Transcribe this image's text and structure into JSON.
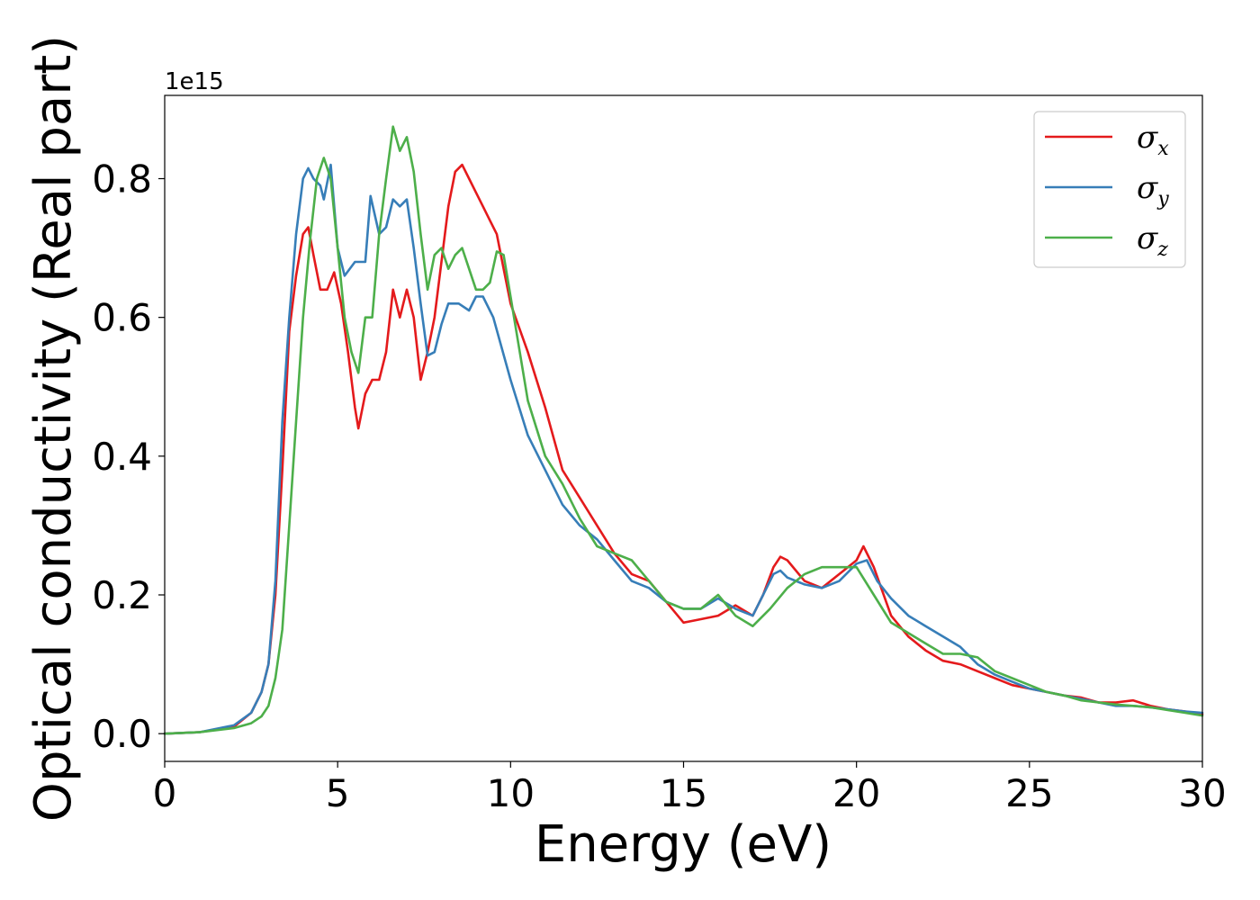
{
  "chart_data": {
    "type": "line",
    "title": "",
    "xlabel": "Energy (eV)",
    "ylabel": "Optical conductivity (Real part)",
    "y_offset_label": "1e15",
    "xlim": [
      0,
      30
    ],
    "ylim": [
      -0.04,
      0.92
    ],
    "xticks": [
      0,
      5,
      10,
      15,
      20,
      25,
      30
    ],
    "xtick_labels": [
      "0",
      "5",
      "10",
      "15",
      "20",
      "25",
      "30"
    ],
    "yticks": [
      0.0,
      0.2,
      0.4,
      0.6,
      0.8
    ],
    "ytick_labels": [
      "0.0",
      "0.2",
      "0.4",
      "0.6",
      "0.8"
    ],
    "grid": false,
    "legend_position": "top-right",
    "series": [
      {
        "name": "σx",
        "symbol": "σ",
        "subscript": "x",
        "color": "#e41a1c",
        "x": [
          0,
          1,
          2,
          2.5,
          2.8,
          3.0,
          3.2,
          3.4,
          3.6,
          3.8,
          4.0,
          4.15,
          4.3,
          4.5,
          4.7,
          4.9,
          5.1,
          5.3,
          5.5,
          5.6,
          5.8,
          6.0,
          6.2,
          6.4,
          6.6,
          6.8,
          7.0,
          7.2,
          7.4,
          7.6,
          7.8,
          8.0,
          8.2,
          8.4,
          8.6,
          8.8,
          9.0,
          9.2,
          9.4,
          9.6,
          9.8,
          10.0,
          10.5,
          11.0,
          11.5,
          12.0,
          12.5,
          13.0,
          13.5,
          14.0,
          14.5,
          15.0,
          15.5,
          16.0,
          16.5,
          17.0,
          17.3,
          17.6,
          17.8,
          18.0,
          18.5,
          19.0,
          19.5,
          20.0,
          20.2,
          20.5,
          21.0,
          21.5,
          22.0,
          22.5,
          23.0,
          23.5,
          24.0,
          24.5,
          25.0,
          25.5,
          26.0,
          26.5,
          27.0,
          27.5,
          28.0,
          28.5,
          29.0,
          29.5,
          30.0
        ],
        "y": [
          0.0,
          0.002,
          0.01,
          0.03,
          0.06,
          0.1,
          0.2,
          0.38,
          0.58,
          0.66,
          0.72,
          0.73,
          0.69,
          0.64,
          0.64,
          0.665,
          0.62,
          0.55,
          0.47,
          0.44,
          0.49,
          0.51,
          0.51,
          0.55,
          0.64,
          0.6,
          0.64,
          0.6,
          0.51,
          0.55,
          0.6,
          0.68,
          0.76,
          0.81,
          0.82,
          0.8,
          0.78,
          0.76,
          0.74,
          0.72,
          0.67,
          0.62,
          0.55,
          0.47,
          0.38,
          0.34,
          0.3,
          0.26,
          0.23,
          0.22,
          0.19,
          0.16,
          0.165,
          0.17,
          0.185,
          0.17,
          0.2,
          0.24,
          0.255,
          0.25,
          0.22,
          0.21,
          0.23,
          0.25,
          0.27,
          0.24,
          0.17,
          0.14,
          0.12,
          0.105,
          0.1,
          0.09,
          0.08,
          0.07,
          0.065,
          0.06,
          0.055,
          0.052,
          0.045,
          0.045,
          0.048,
          0.04,
          0.035,
          0.032,
          0.028
        ]
      },
      {
        "name": "σy",
        "symbol": "σ",
        "subscript": "y",
        "color": "#377eb8",
        "x": [
          0,
          1,
          2,
          2.5,
          2.8,
          3.0,
          3.2,
          3.4,
          3.6,
          3.8,
          4.0,
          4.15,
          4.3,
          4.5,
          4.6,
          4.8,
          5.0,
          5.2,
          5.5,
          5.8,
          5.95,
          6.2,
          6.4,
          6.6,
          6.8,
          7.0,
          7.2,
          7.4,
          7.6,
          7.8,
          8.0,
          8.2,
          8.5,
          8.8,
          9.0,
          9.2,
          9.5,
          10.0,
          10.5,
          11.0,
          11.5,
          12.0,
          12.5,
          13.0,
          13.5,
          14.0,
          14.5,
          15.0,
          15.5,
          16.0,
          16.5,
          17.0,
          17.3,
          17.6,
          17.8,
          18.0,
          18.5,
          19.0,
          19.5,
          20.0,
          20.3,
          20.6,
          21.0,
          21.5,
          22.0,
          22.5,
          23.0,
          23.5,
          24.0,
          24.5,
          25.0,
          25.5,
          26.0,
          26.5,
          27.0,
          27.5,
          28.0,
          28.5,
          29.0,
          29.5,
          30.0
        ],
        "y": [
          0.0,
          0.002,
          0.012,
          0.03,
          0.06,
          0.1,
          0.22,
          0.45,
          0.6,
          0.72,
          0.8,
          0.815,
          0.8,
          0.79,
          0.77,
          0.82,
          0.7,
          0.66,
          0.68,
          0.68,
          0.775,
          0.72,
          0.73,
          0.77,
          0.76,
          0.77,
          0.7,
          0.62,
          0.545,
          0.55,
          0.59,
          0.62,
          0.62,
          0.61,
          0.63,
          0.63,
          0.6,
          0.51,
          0.43,
          0.38,
          0.33,
          0.3,
          0.28,
          0.25,
          0.22,
          0.21,
          0.19,
          0.18,
          0.18,
          0.195,
          0.18,
          0.17,
          0.2,
          0.23,
          0.235,
          0.225,
          0.215,
          0.21,
          0.22,
          0.245,
          0.25,
          0.22,
          0.195,
          0.17,
          0.155,
          0.14,
          0.125,
          0.1,
          0.085,
          0.075,
          0.065,
          0.06,
          0.055,
          0.05,
          0.045,
          0.04,
          0.04,
          0.038,
          0.035,
          0.032,
          0.03
        ]
      },
      {
        "name": "σz",
        "symbol": "σ",
        "subscript": "z",
        "color": "#4daf4a",
        "x": [
          0,
          1,
          2,
          2.5,
          2.8,
          3.0,
          3.2,
          3.4,
          3.6,
          3.8,
          4.0,
          4.2,
          4.4,
          4.6,
          4.8,
          5.0,
          5.2,
          5.4,
          5.6,
          5.8,
          6.0,
          6.2,
          6.4,
          6.6,
          6.8,
          7.0,
          7.2,
          7.4,
          7.6,
          7.8,
          8.0,
          8.2,
          8.4,
          8.6,
          8.8,
          9.0,
          9.2,
          9.4,
          9.6,
          9.8,
          10.0,
          10.5,
          11.0,
          11.5,
          12.0,
          12.5,
          13.0,
          13.5,
          14.0,
          14.5,
          15.0,
          15.5,
          16.0,
          16.5,
          17.0,
          17.5,
          18.0,
          18.5,
          19.0,
          19.5,
          20.0,
          20.5,
          21.0,
          21.5,
          22.0,
          22.5,
          23.0,
          23.5,
          24.0,
          24.5,
          25.0,
          25.5,
          26.0,
          26.5,
          27.0,
          27.5,
          28.0,
          28.5,
          29.0,
          29.5,
          30.0
        ],
        "y": [
          0.0,
          0.002,
          0.008,
          0.015,
          0.025,
          0.04,
          0.08,
          0.15,
          0.3,
          0.45,
          0.6,
          0.71,
          0.8,
          0.83,
          0.8,
          0.7,
          0.6,
          0.55,
          0.52,
          0.6,
          0.6,
          0.72,
          0.8,
          0.875,
          0.84,
          0.86,
          0.81,
          0.72,
          0.64,
          0.69,
          0.7,
          0.67,
          0.69,
          0.7,
          0.67,
          0.64,
          0.64,
          0.65,
          0.695,
          0.69,
          0.63,
          0.48,
          0.4,
          0.36,
          0.31,
          0.27,
          0.26,
          0.25,
          0.22,
          0.19,
          0.18,
          0.18,
          0.2,
          0.17,
          0.155,
          0.18,
          0.21,
          0.23,
          0.24,
          0.24,
          0.24,
          0.2,
          0.16,
          0.145,
          0.13,
          0.115,
          0.115,
          0.11,
          0.09,
          0.08,
          0.07,
          0.06,
          0.055,
          0.048,
          0.045,
          0.042,
          0.04,
          0.038,
          0.034,
          0.03,
          0.026
        ]
      }
    ]
  }
}
